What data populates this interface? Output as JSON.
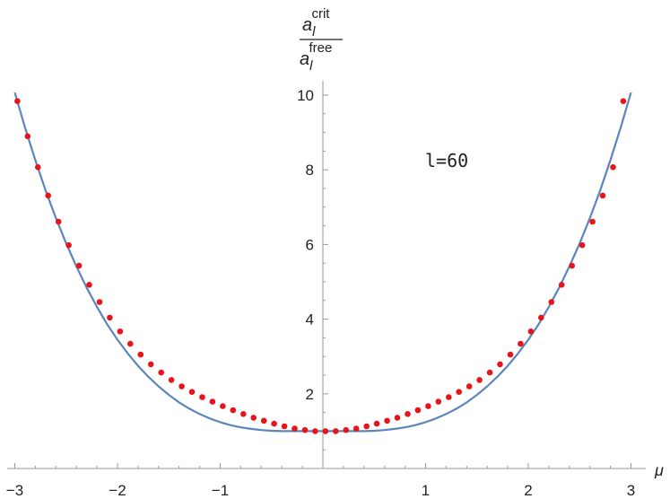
{
  "chart_data": {
    "type": "scatter",
    "title": "",
    "xlabel": "μ",
    "ylabel": {
      "numerator_base": "a",
      "numerator_sub": "l",
      "numerator_sup": "crit",
      "denominator_base": "a",
      "denominator_sub": "l",
      "denominator_sup": "free"
    },
    "xlim": [
      -3,
      3
    ],
    "ylim": [
      0,
      10
    ],
    "x_ticks": [
      -3,
      -2,
      -1,
      1,
      2,
      3
    ],
    "x_tick_labels": [
      "−3",
      "−2",
      "−1",
      "1",
      "2",
      "3"
    ],
    "y_ticks": [
      2,
      4,
      6,
      8,
      10
    ],
    "y_tick_labels": [
      "2",
      "4",
      "6",
      "8",
      "10"
    ],
    "annotation": "l=60",
    "grid": false,
    "legend": "none",
    "series": [
      {
        "kind": "curve",
        "color": "#5b85bb",
        "x": [
          -3.0,
          -2.9,
          -2.8,
          -2.7,
          -2.6,
          -2.5,
          -2.4,
          -2.3,
          -2.2,
          -2.1,
          -2.0,
          -1.9,
          -1.8,
          -1.7,
          -1.6,
          -1.5,
          -1.4,
          -1.3,
          -1.2,
          -1.1,
          -1.0,
          -0.9,
          -0.8,
          -0.7,
          -0.6,
          -0.5,
          -0.4,
          -0.3,
          -0.2,
          -0.1,
          0.0,
          0.1,
          0.2,
          0.3,
          0.4,
          0.5,
          0.6,
          0.7,
          0.8,
          0.9,
          1.0,
          1.1,
          1.2,
          1.3,
          1.4,
          1.5,
          1.6,
          1.7,
          1.8,
          1.9,
          2.0,
          2.1,
          2.2,
          2.3,
          2.4,
          2.5,
          2.6,
          2.7,
          2.8,
          2.9,
          3.0
        ],
        "y": [
          10.07,
          9.13,
          8.26,
          7.45,
          6.71,
          6.03,
          5.41,
          4.84,
          4.33,
          3.86,
          3.45,
          3.08,
          2.75,
          2.46,
          2.2,
          1.97,
          1.77,
          1.6,
          1.46,
          1.34,
          1.24,
          1.16,
          1.1,
          1.06,
          1.03,
          1.01,
          1.0,
          1.0,
          1.0,
          1.0,
          1.0,
          1.0,
          1.0,
          1.0,
          1.0,
          1.01,
          1.03,
          1.06,
          1.1,
          1.16,
          1.24,
          1.34,
          1.46,
          1.6,
          1.77,
          1.97,
          2.2,
          2.46,
          2.75,
          3.08,
          3.45,
          3.86,
          4.33,
          4.84,
          5.41,
          6.03,
          6.71,
          7.45,
          8.26,
          9.13,
          10.07
        ]
      },
      {
        "kind": "points",
        "color": "#e8141a",
        "x": [
          -2.975,
          -2.875,
          -2.775,
          -2.675,
          -2.575,
          -2.475,
          -2.375,
          -2.275,
          -2.175,
          -2.075,
          -1.975,
          -1.875,
          -1.775,
          -1.675,
          -1.575,
          -1.475,
          -1.375,
          -1.275,
          -1.175,
          -1.075,
          -0.975,
          -0.875,
          -0.775,
          -0.675,
          -0.575,
          -0.475,
          -0.375,
          -0.275,
          -0.175,
          -0.075,
          0.025,
          0.125,
          0.225,
          0.325,
          0.425,
          0.525,
          0.625,
          0.725,
          0.825,
          0.925,
          1.025,
          1.125,
          1.225,
          1.325,
          1.425,
          1.525,
          1.625,
          1.725,
          1.825,
          1.925,
          2.025,
          2.125,
          2.225,
          2.325,
          2.425,
          2.525,
          2.625,
          2.725,
          2.825,
          2.925
        ],
        "y": [
          9.84,
          8.9,
          8.07,
          7.31,
          6.61,
          5.98,
          5.43,
          4.92,
          4.46,
          4.04,
          3.67,
          3.34,
          3.05,
          2.79,
          2.57,
          2.37,
          2.2,
          2.05,
          1.91,
          1.79,
          1.67,
          1.56,
          1.46,
          1.36,
          1.28,
          1.2,
          1.13,
          1.07,
          1.03,
          1.0,
          1.0,
          1.0,
          1.03,
          1.07,
          1.13,
          1.2,
          1.28,
          1.36,
          1.46,
          1.56,
          1.67,
          1.79,
          1.91,
          2.05,
          2.2,
          2.37,
          2.57,
          2.79,
          3.05,
          3.34,
          3.67,
          4.04,
          4.46,
          4.92,
          5.43,
          5.98,
          6.61,
          7.31,
          8.07,
          9.84
        ]
      }
    ]
  }
}
